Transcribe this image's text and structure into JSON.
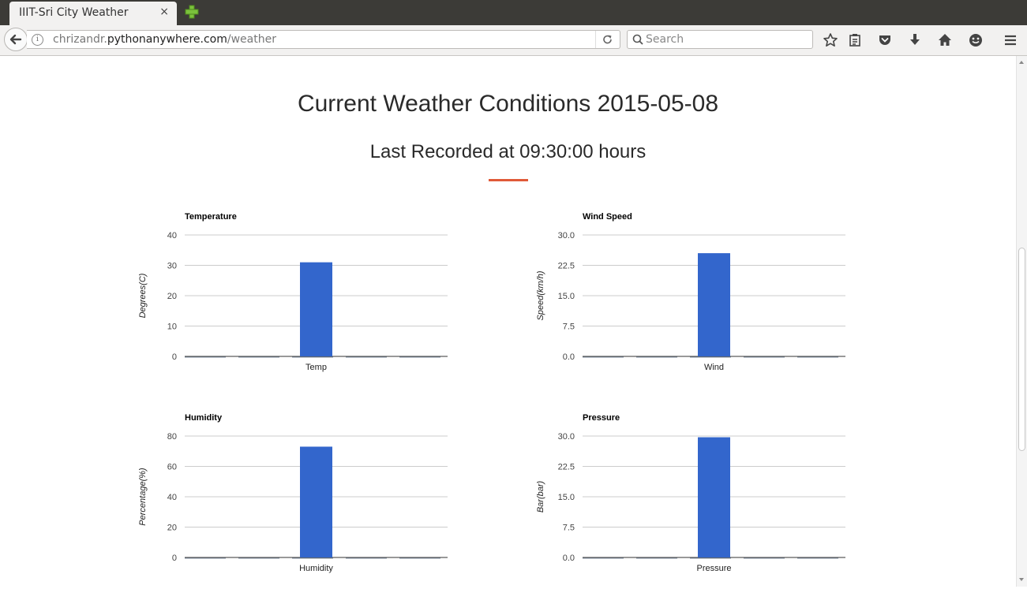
{
  "browser": {
    "tab_title": "IIIT-Sri City Weather",
    "tab_close": "×",
    "url_host_prefix": "chrizandr.",
    "url_host_main": "pythonanywhere.com",
    "url_path": "/weather",
    "search_placeholder": "Search",
    "icons": [
      "back-icon",
      "info-icon",
      "reload-icon",
      "search-icon",
      "bookmark-star-icon",
      "reading-list-icon",
      "pocket-icon",
      "download-icon",
      "home-icon",
      "smiley-icon",
      "menu-icon",
      "new-tab-icon"
    ]
  },
  "page": {
    "title": "Current Weather Conditions 2015-05-08",
    "subtitle": "Last Recorded at 09:30:00 hours",
    "accent_color": "#e05a38"
  },
  "chart_data": [
    {
      "type": "bar",
      "title": "Temperature",
      "ylabel": "Degrees(C)",
      "categories": [
        "Temp"
      ],
      "values": [
        31
      ],
      "ylim": [
        0,
        40
      ],
      "yticks": [
        "0",
        "10",
        "20",
        "30",
        "40"
      ],
      "color": "#3366cc",
      "grid": true
    },
    {
      "type": "bar",
      "title": "Wind Speed",
      "ylabel": "Speed(km/h)",
      "categories": [
        "Wind"
      ],
      "values": [
        25.5
      ],
      "ylim": [
        0,
        30
      ],
      "yticks": [
        "0.0",
        "7.5",
        "15.0",
        "22.5",
        "30.0"
      ],
      "color": "#3366cc",
      "grid": true
    },
    {
      "type": "bar",
      "title": "Humidity",
      "ylabel": "Percentage(%)",
      "categories": [
        "Humidity"
      ],
      "values": [
        73
      ],
      "ylim": [
        0,
        80
      ],
      "yticks": [
        "0",
        "20",
        "40",
        "60",
        "80"
      ],
      "color": "#3366cc",
      "grid": true
    },
    {
      "type": "bar",
      "title": "Pressure",
      "ylabel": "Bar(bar)",
      "categories": [
        "Pressure"
      ],
      "values": [
        29.7
      ],
      "ylim": [
        0,
        30
      ],
      "yticks": [
        "0.0",
        "7.5",
        "15.0",
        "22.5",
        "30.0"
      ],
      "color": "#3366cc",
      "grid": true
    }
  ]
}
